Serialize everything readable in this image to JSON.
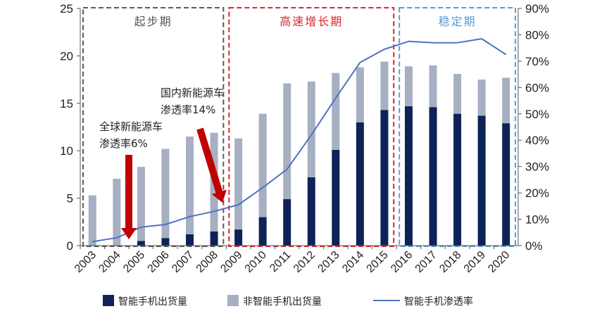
{
  "chart_data": {
    "type": "bar",
    "subtype": "stacked-bar-with-line",
    "categories": [
      "2003",
      "2004",
      "2005",
      "2006",
      "2007",
      "2008",
      "2009",
      "2010",
      "2011",
      "2012",
      "2013",
      "2014",
      "2015",
      "2016",
      "2017",
      "2018",
      "2019",
      "2020"
    ],
    "series": [
      {
        "name": "智能手机出货量",
        "kind": "bar",
        "axis": "left",
        "values": [
          0.0,
          0.05,
          0.5,
          0.8,
          1.2,
          1.5,
          1.7,
          3.0,
          4.9,
          7.2,
          10.1,
          13.0,
          14.3,
          14.7,
          14.6,
          13.9,
          13.7,
          12.9
        ]
      },
      {
        "name": "非智能手机出货量",
        "kind": "bar",
        "axis": "left",
        "values": [
          5.3,
          7.0,
          7.8,
          9.4,
          10.3,
          10.4,
          9.6,
          10.9,
          12.2,
          10.1,
          8.1,
          5.8,
          5.1,
          4.2,
          4.4,
          4.2,
          3.8,
          4.8
        ]
      },
      {
        "name": "智能手机渗透率",
        "kind": "line",
        "axis": "right",
        "unit": "%",
        "values": [
          1.5,
          3,
          7,
          8,
          11,
          13,
          15.5,
          22,
          29,
          42,
          56,
          69.5,
          74.5,
          77.5,
          77,
          77,
          78.5,
          72.5
        ]
      }
    ],
    "y_left": {
      "min": 0,
      "max": 25,
      "ticks": [
        "0",
        "5",
        "10",
        "15",
        "20",
        "25"
      ]
    },
    "y_right": {
      "min": 0,
      "max": 90,
      "ticks": [
        "0%",
        "10%",
        "20%",
        "30%",
        "40%",
        "50%",
        "60%",
        "70%",
        "80%",
        "90%"
      ]
    },
    "phases": [
      {
        "label": "起步期",
        "from": "2003",
        "to": "2008",
        "color": "#595959"
      },
      {
        "label": "高速增长期",
        "from": "2009",
        "to": "2015",
        "color": "#d9262c"
      },
      {
        "label": "稳定期",
        "from": "2016",
        "to": "2020",
        "color": "#5b9bd5"
      }
    ],
    "annotations": [
      {
        "lines": [
          "全球新能源车",
          "渗透率6%"
        ],
        "year": "2005"
      },
      {
        "lines": [
          "国内新能源车",
          "渗透率14%"
        ],
        "year": "2008"
      }
    ],
    "legend_position": "bottom",
    "colors": {
      "smart": "#0d2357",
      "nonsmart": "#a6b0c2",
      "line": "#4f72c4",
      "arrow": "#c00000"
    }
  }
}
